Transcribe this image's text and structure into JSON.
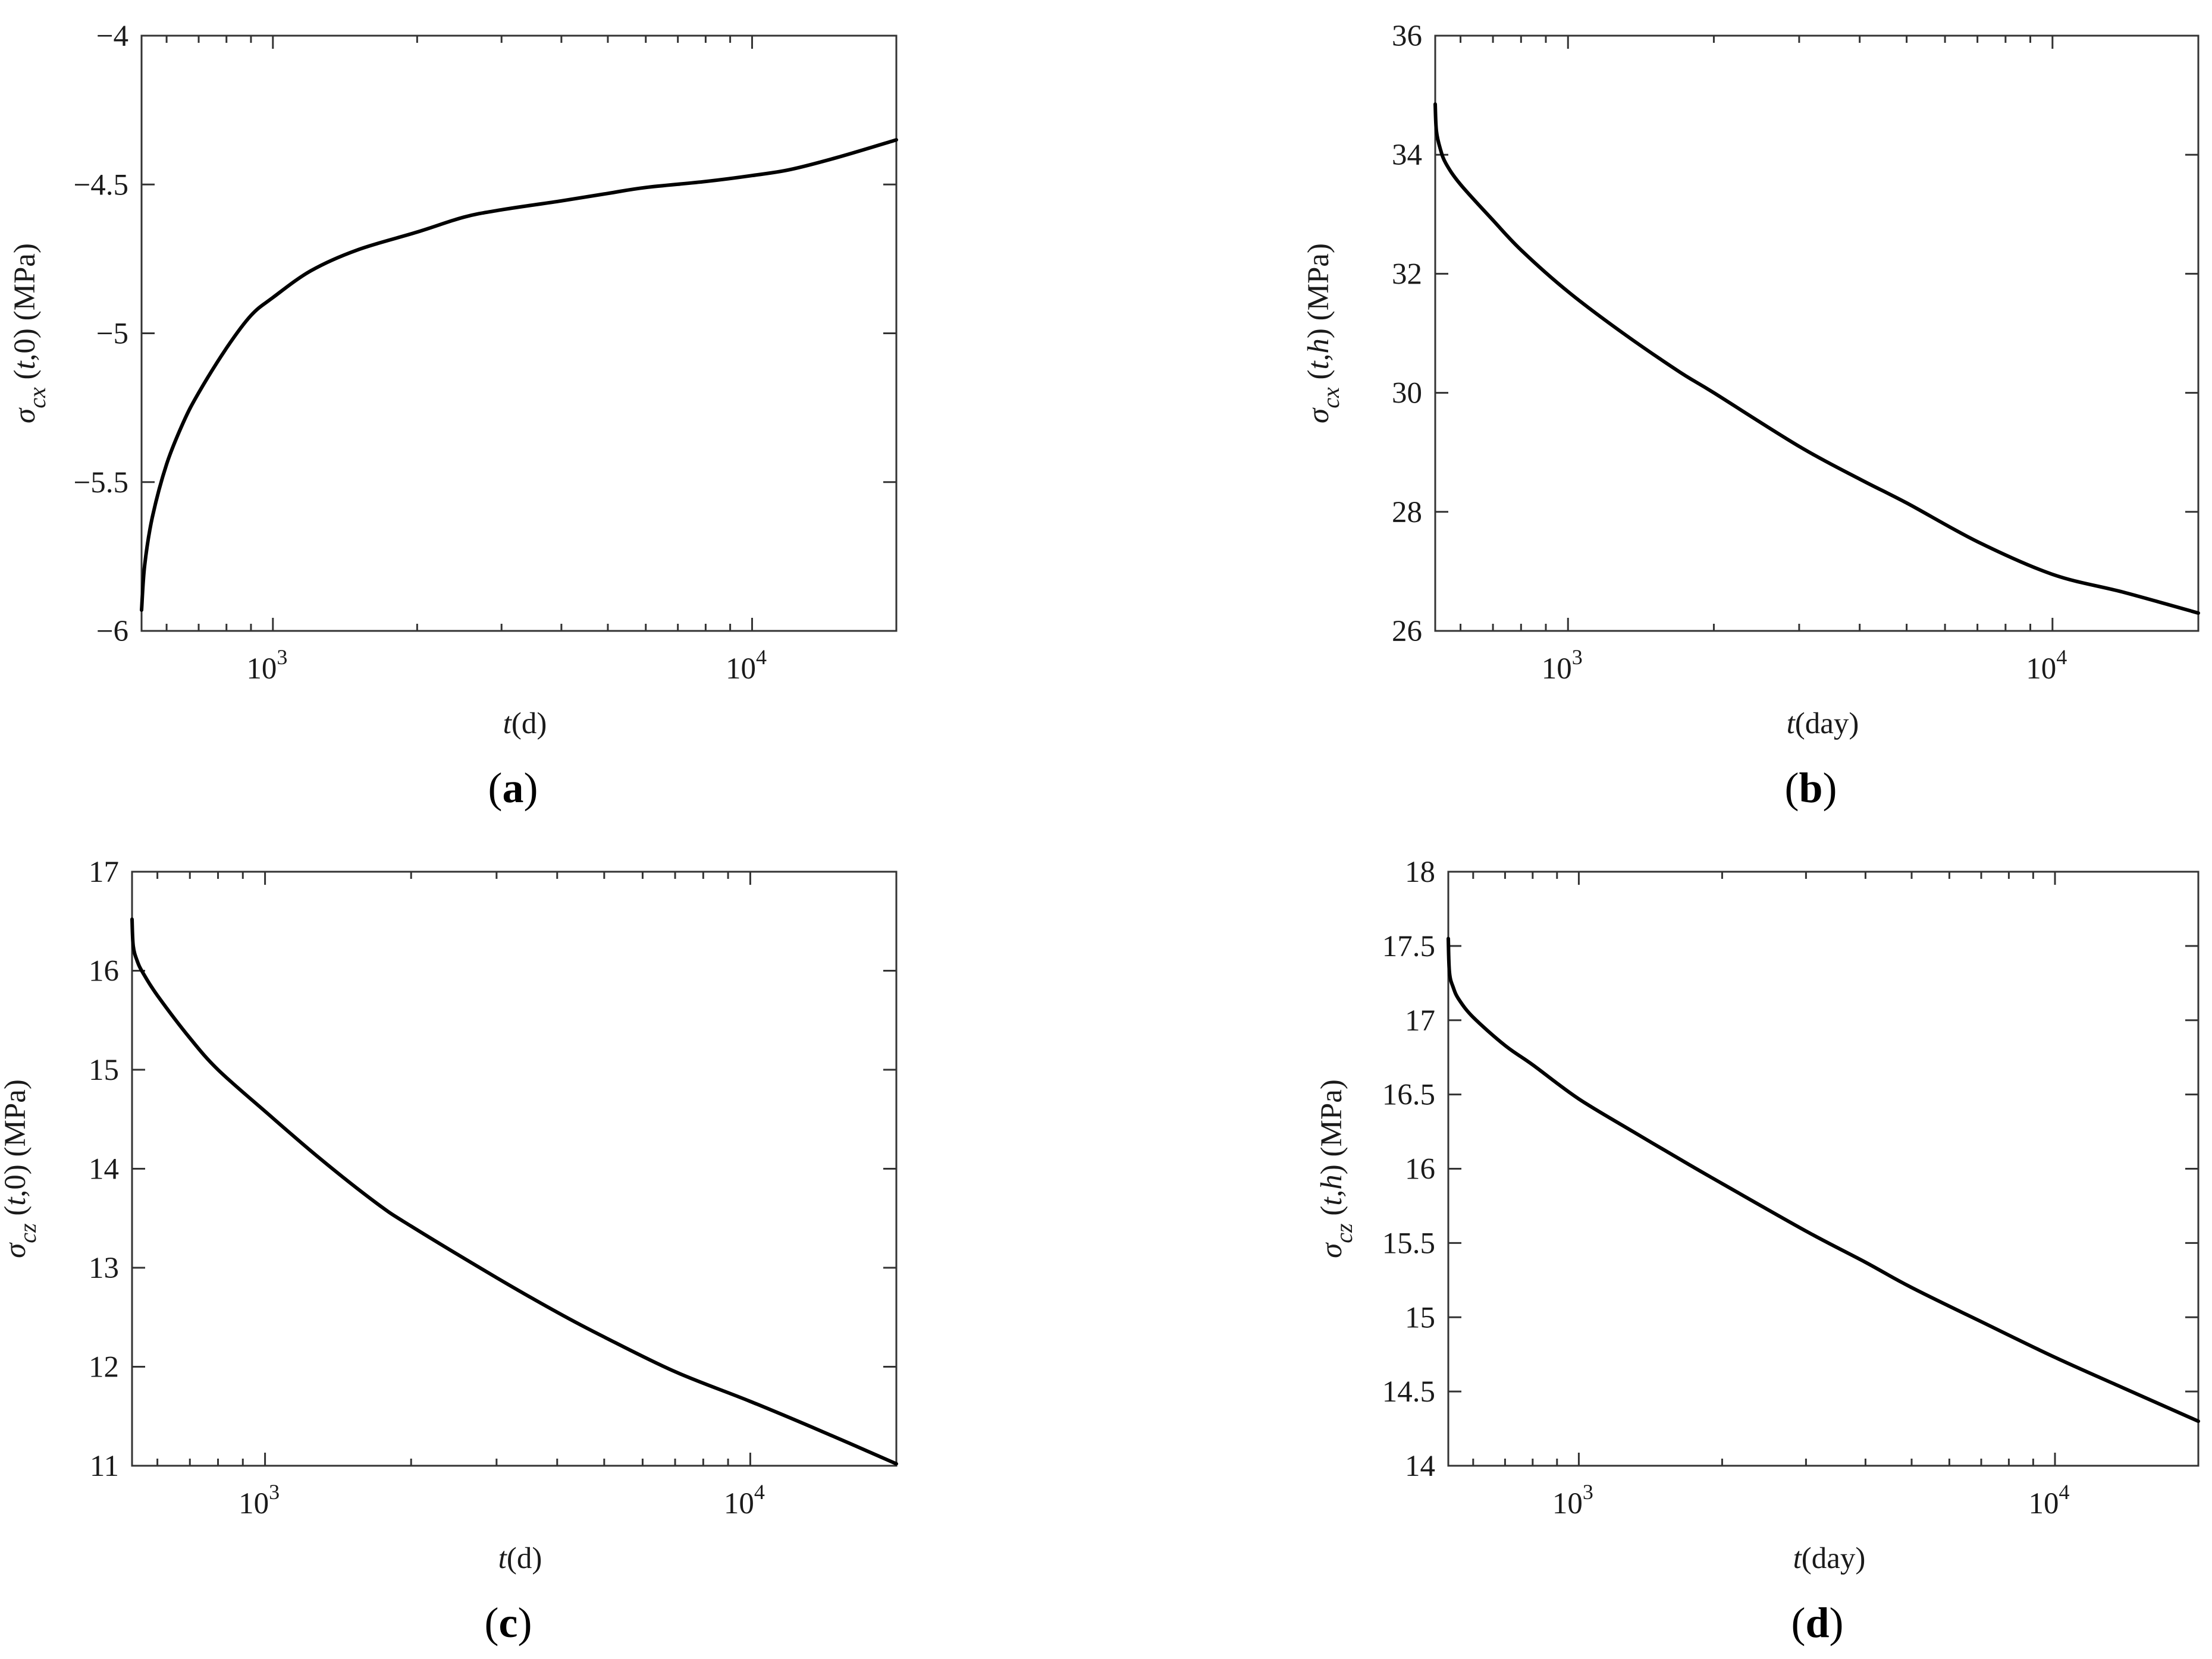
{
  "chart_data": [
    {
      "type": "line",
      "panel_label": "a",
      "xlabel": "t(d)",
      "xlabel_var": "t",
      "xlabel_rest": "(d)",
      "ylabel": "σcx (t,0) (MPa)",
      "ylabel_sym": "σ",
      "ylabel_sub": "cx",
      "ylabel_var_open": " (",
      "ylabel_var": "t",
      "ylabel_rest": ",0) (MPa)",
      "xscale": "log",
      "xlim": [
        532,
        20000
      ],
      "ylim": [
        -6,
        -4
      ],
      "yticks": [
        -6,
        -5.5,
        -5,
        -4.5,
        -4
      ],
      "ytick_labels": [
        "−6",
        "−5.5",
        "−5",
        "−4.5",
        "−4"
      ],
      "xtick_labels": [
        {
          "base": "10",
          "exp": "3",
          "value": 1000
        },
        {
          "base": "10",
          "exp": "4",
          "value": 10000
        }
      ],
      "grid": false,
      "x": [
        532,
        540,
        560,
        600,
        650,
        700,
        800,
        900,
        1000,
        1200,
        1500,
        2000,
        2500,
        3000,
        4000,
        5000,
        6000,
        8000,
        10000,
        12000,
        15000,
        20000
      ],
      "y": [
        -5.93,
        -5.78,
        -5.62,
        -5.44,
        -5.3,
        -5.2,
        -5.05,
        -4.94,
        -4.88,
        -4.79,
        -4.72,
        -4.66,
        -4.61,
        -4.585,
        -4.555,
        -4.53,
        -4.51,
        -4.49,
        -4.47,
        -4.45,
        -4.41,
        -4.35
      ]
    },
    {
      "type": "line",
      "panel_label": "b",
      "xlabel": "t(day)",
      "xlabel_var": "t",
      "xlabel_rest": "(day)",
      "ylabel": "σcx (t,h) (MPa)",
      "ylabel_sym": "σ",
      "ylabel_sub": "cx",
      "ylabel_var_open": " (",
      "ylabel_var": "t,h",
      "ylabel_rest": ") (MPa)",
      "xscale": "log",
      "xlim": [
        532,
        20000
      ],
      "ylim": [
        26,
        36
      ],
      "yticks": [
        26,
        28,
        30,
        32,
        34,
        36
      ],
      "ytick_labels": [
        "26",
        "28",
        "30",
        "32",
        "34",
        "36"
      ],
      "xtick_labels": [
        {
          "base": "10",
          "exp": "3",
          "value": 1000
        },
        {
          "base": "10",
          "exp": "4",
          "value": 10000
        }
      ],
      "grid": false,
      "x": [
        532,
        535,
        545,
        560,
        600,
        700,
        800,
        1000,
        1300,
        1700,
        2000,
        3000,
        4000,
        5000,
        7000,
        10000,
        14000,
        20000
      ],
      "y": [
        34.85,
        34.4,
        34.1,
        33.85,
        33.5,
        32.9,
        32.4,
        31.7,
        31.0,
        30.35,
        30.0,
        29.1,
        28.55,
        28.15,
        27.5,
        26.95,
        26.65,
        26.3
      ]
    },
    {
      "type": "line",
      "panel_label": "c",
      "xlabel": "t(d)",
      "xlabel_var": "t",
      "xlabel_rest": "(d)",
      "ylabel": "σcz (t,0) (MPa)",
      "ylabel_sym": "σ",
      "ylabel_sub": "cz",
      "ylabel_var_open": " (",
      "ylabel_var": "t",
      "ylabel_rest": ",0) (MPa)",
      "xscale": "log",
      "xlim": [
        532,
        20000
      ],
      "ylim": [
        11,
        17
      ],
      "yticks": [
        11,
        12,
        13,
        14,
        15,
        16,
        17
      ],
      "ytick_labels": [
        "11",
        "12",
        "13",
        "14",
        "15",
        "16",
        "17"
      ],
      "xtick_labels": [
        {
          "base": "10",
          "exp": "3",
          "value": 1000
        },
        {
          "base": "10",
          "exp": "4",
          "value": 10000
        }
      ],
      "grid": false,
      "x": [
        532,
        535,
        545,
        560,
        600,
        700,
        800,
        1000,
        1300,
        1700,
        2000,
        3000,
        4000,
        5000,
        7000,
        10000,
        14000,
        20000
      ],
      "y": [
        16.52,
        16.25,
        16.1,
        15.98,
        15.75,
        15.32,
        15.0,
        14.58,
        14.1,
        13.65,
        13.42,
        12.9,
        12.55,
        12.3,
        11.95,
        11.65,
        11.35,
        11.02
      ]
    },
    {
      "type": "line",
      "panel_label": "d",
      "xlabel": "t(day)",
      "xlabel_var": "t",
      "xlabel_rest": "(day)",
      "ylabel": "σcz (t,h) (MPa)",
      "ylabel_sym": "σ",
      "ylabel_sub": "cz",
      "ylabel_var_open": " (",
      "ylabel_var": "t,h",
      "ylabel_rest": ") (MPa)",
      "xscale": "log",
      "xlim": [
        532,
        20000
      ],
      "ylim": [
        14,
        18
      ],
      "yticks": [
        14,
        14.5,
        15,
        15.5,
        16,
        16.5,
        17,
        17.5,
        18
      ],
      "ytick_labels": [
        "14",
        "14.5",
        "15",
        "15.5",
        "16",
        "16.5",
        "17",
        "17.5",
        "18"
      ],
      "xtick_labels": [
        {
          "base": "10",
          "exp": "3",
          "value": 1000
        },
        {
          "base": "10",
          "exp": "4",
          "value": 10000
        }
      ],
      "grid": false,
      "x": [
        532,
        535,
        545,
        560,
        600,
        700,
        800,
        1000,
        1300,
        1700,
        2000,
        3000,
        4000,
        5000,
        7000,
        10000,
        14000,
        20000
      ],
      "y": [
        17.55,
        17.32,
        17.22,
        17.14,
        17.02,
        16.83,
        16.7,
        16.47,
        16.25,
        16.03,
        15.9,
        15.58,
        15.37,
        15.2,
        14.97,
        14.73,
        14.52,
        14.3
      ]
    }
  ]
}
